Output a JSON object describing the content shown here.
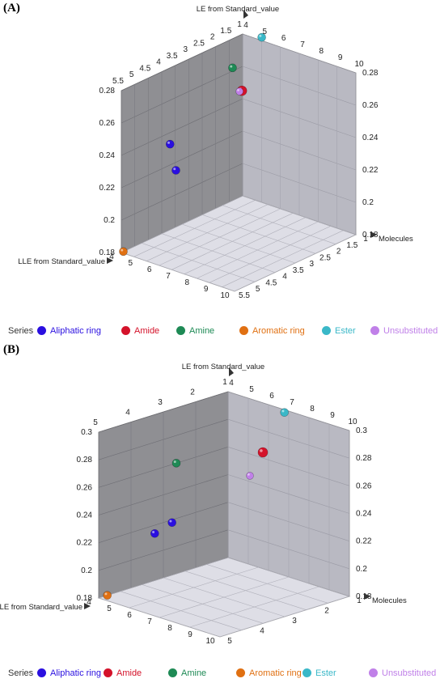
{
  "colors": {
    "Aliphatic ring": "#2a0fe0",
    "Amide": "#d4122a",
    "Amine": "#1e8a55",
    "Aromatic ring": "#e07012",
    "Ester": "#3ab8c8",
    "Unsubstituted": "#c080e8"
  },
  "chart_data": [
    {
      "type": "scatter",
      "panel_label": "(A)",
      "title": "",
      "x_axis": {
        "label": "Molecules",
        "range": [
          1,
          10
        ],
        "ticks": [
          "1",
          "1.5",
          "2",
          "2.5",
          "3",
          "3.5",
          "4",
          "4.5",
          "5",
          "5.5"
        ]
      },
      "y_axis": {
        "label": "LE from Standard_value",
        "range": [
          0.18,
          0.28
        ],
        "ticks": [
          "0.18",
          "0.2",
          "0.22",
          "0.24",
          "0.26",
          "0.28"
        ]
      },
      "z_axis": {
        "label": "LLE from Standard_value",
        "range": [
          4,
          10
        ],
        "ticks": [
          "4",
          "5",
          "6",
          "7",
          "8",
          "9",
          "10"
        ]
      },
      "back_top_ticks_left": [
        "5.5",
        "5",
        "4.5",
        "4",
        "3.5",
        "3",
        "2.5",
        "2",
        "1.5",
        "1"
      ],
      "back_top_ticks_right": [
        "4",
        "5",
        "6",
        "7",
        "8",
        "9",
        "10"
      ],
      "legend": {
        "title": "Series",
        "entries": [
          "Aliphatic ring",
          "Amide",
          "Amine",
          "Aromatic ring",
          "Ester",
          "Unsubstituted"
        ]
      },
      "points": [
        {
          "series": "Aliphatic ring",
          "molecule": 1.5,
          "le": 0.236,
          "lle": 7.9
        },
        {
          "series": "Aliphatic ring",
          "molecule": 1.0,
          "le": 0.215,
          "lle": 7.3
        },
        {
          "series": "Amide",
          "molecule": 4.0,
          "le": 0.264,
          "lle": 5.9
        },
        {
          "series": "Amine",
          "molecule": 1.0,
          "le": 0.262,
          "lle": 4.5
        },
        {
          "series": "Aromatic ring",
          "molecule": 1.0,
          "le": 0.18,
          "lle": 9.9
        },
        {
          "series": "Ester",
          "molecule": 3.0,
          "le": 0.285,
          "lle": 4.3
        },
        {
          "series": "Unsubstituted",
          "molecule": 3.0,
          "le": 0.258,
          "lle": 5.4
        }
      ]
    },
    {
      "type": "scatter",
      "panel_label": "(B)",
      "title": "",
      "x_axis": {
        "label": "Molecules",
        "range": [
          1,
          5
        ],
        "ticks": [
          "1",
          "2",
          "3",
          "4",
          "5"
        ]
      },
      "y_axis": {
        "label": "LE from Standard_value",
        "range": [
          0.18,
          0.3
        ],
        "ticks": [
          "0.18",
          "0.2",
          "0.22",
          "0.24",
          "0.26",
          "0.28",
          "0.3"
        ]
      },
      "z_axis": {
        "label": "LLE from Standard_value",
        "range": [
          4,
          10
        ],
        "ticks": [
          "4",
          "5",
          "6",
          "7",
          "8",
          "9",
          "10"
        ]
      },
      "back_top_ticks_left": [
        "5",
        "4",
        "3",
        "2",
        "1"
      ],
      "back_top_ticks_right": [
        "4",
        "5",
        "6",
        "7",
        "8",
        "9",
        "10"
      ],
      "legend": {
        "title": "Series",
        "entries": [
          "Aliphatic ring",
          "Amide",
          "Amine",
          "Aromatic ring",
          "Ester",
          "Unsubstituted"
        ]
      },
      "points": [
        {
          "series": "Aliphatic ring",
          "molecule": 1.0,
          "le": 0.218,
          "lle": 6.6
        },
        {
          "series": "Aliphatic ring",
          "molecule": 1.0,
          "le": 0.214,
          "lle": 7.4
        },
        {
          "series": "Amide",
          "molecule": 3.0,
          "le": 0.276,
          "lle": 5.2
        },
        {
          "series": "Amine",
          "molecule": 1.0,
          "le": 0.26,
          "lle": 6.4
        },
        {
          "series": "Aromatic ring",
          "molecule": 1.0,
          "le": 0.18,
          "lle": 9.6
        },
        {
          "series": "Ester",
          "molecule": 3.0,
          "le": 0.3,
          "lle": 4.2
        },
        {
          "series": "Unsubstituted",
          "molecule": 3.0,
          "le": 0.262,
          "lle": 5.8
        }
      ]
    }
  ]
}
